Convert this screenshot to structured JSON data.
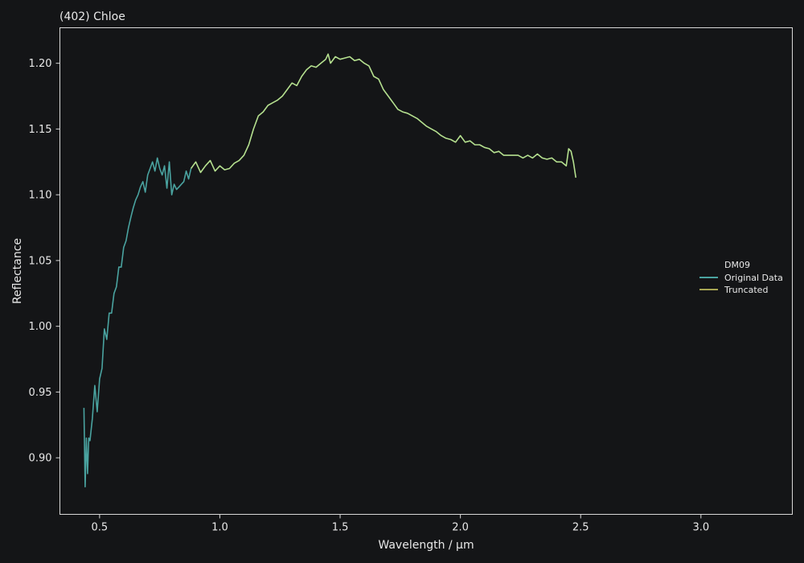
{
  "chart_data": {
    "type": "line",
    "title": "(402) Chloe",
    "xlabel": "Wavelength / µm",
    "ylabel": "Reflectance",
    "xlim": [
      0.335,
      3.38
    ],
    "ylim": [
      0.857,
      1.227
    ],
    "xticks": [
      0.5,
      1.0,
      1.5,
      2.0,
      2.5,
      3.0
    ],
    "xtick_labels": [
      "0.5",
      "1.0",
      "1.5",
      "2.0",
      "2.5",
      "3.0"
    ],
    "yticks": [
      0.9,
      0.95,
      1.0,
      1.05,
      1.1,
      1.15,
      1.2
    ],
    "ytick_labels": [
      "0.90",
      "0.95",
      "1.00",
      "1.05",
      "1.10",
      "1.15",
      "1.20"
    ],
    "grid": false,
    "legend": {
      "title": "DM09",
      "position": "right"
    },
    "series": [
      {
        "name": "Original Data",
        "color": "#4aa3a0",
        "x": [
          0.435,
          0.44,
          0.445,
          0.45,
          0.455,
          0.46,
          0.47,
          0.48,
          0.49,
          0.5,
          0.51,
          0.52,
          0.53,
          0.54,
          0.55,
          0.56,
          0.57,
          0.58,
          0.59,
          0.6,
          0.61,
          0.62,
          0.63,
          0.64,
          0.65,
          0.66,
          0.67,
          0.68,
          0.69,
          0.7,
          0.71,
          0.72,
          0.73,
          0.74,
          0.75,
          0.76,
          0.77,
          0.78,
          0.79,
          0.8,
          0.81,
          0.82,
          0.83,
          0.84,
          0.85,
          0.86,
          0.87,
          0.88
        ],
        "y": [
          0.938,
          0.878,
          0.915,
          0.888,
          0.915,
          0.913,
          0.93,
          0.955,
          0.935,
          0.96,
          0.968,
          0.998,
          0.99,
          1.01,
          1.01,
          1.025,
          1.03,
          1.045,
          1.045,
          1.06,
          1.065,
          1.075,
          1.083,
          1.09,
          1.096,
          1.1,
          1.106,
          1.11,
          1.102,
          1.115,
          1.12,
          1.125,
          1.118,
          1.128,
          1.12,
          1.115,
          1.122,
          1.105,
          1.125,
          1.1,
          1.108,
          1.104,
          1.106,
          1.108,
          1.11,
          1.118,
          1.112,
          1.12
        ]
      },
      {
        "name": "Truncated",
        "color": "#b5e08f",
        "x": [
          0.88,
          0.9,
          0.92,
          0.94,
          0.96,
          0.98,
          1.0,
          1.02,
          1.04,
          1.06,
          1.08,
          1.1,
          1.12,
          1.14,
          1.16,
          1.18,
          1.2,
          1.22,
          1.24,
          1.26,
          1.28,
          1.3,
          1.32,
          1.34,
          1.36,
          1.38,
          1.4,
          1.42,
          1.44,
          1.45,
          1.46,
          1.48,
          1.5,
          1.52,
          1.54,
          1.56,
          1.58,
          1.6,
          1.62,
          1.64,
          1.66,
          1.68,
          1.7,
          1.72,
          1.74,
          1.76,
          1.78,
          1.8,
          1.82,
          1.84,
          1.86,
          1.88,
          1.9,
          1.92,
          1.94,
          1.96,
          1.98,
          2.0,
          2.02,
          2.04,
          2.06,
          2.08,
          2.1,
          2.12,
          2.14,
          2.16,
          2.18,
          2.2,
          2.22,
          2.24,
          2.26,
          2.28,
          2.3,
          2.32,
          2.34,
          2.36,
          2.38,
          2.4,
          2.42,
          2.44,
          2.45,
          2.46,
          2.47,
          2.48
        ],
        "y": [
          1.12,
          1.125,
          1.117,
          1.122,
          1.126,
          1.118,
          1.122,
          1.119,
          1.12,
          1.124,
          1.126,
          1.13,
          1.138,
          1.15,
          1.16,
          1.163,
          1.168,
          1.17,
          1.172,
          1.175,
          1.18,
          1.185,
          1.183,
          1.19,
          1.195,
          1.198,
          1.197,
          1.2,
          1.203,
          1.207,
          1.2,
          1.205,
          1.203,
          1.204,
          1.205,
          1.202,
          1.203,
          1.2,
          1.198,
          1.19,
          1.188,
          1.18,
          1.175,
          1.17,
          1.165,
          1.163,
          1.162,
          1.16,
          1.158,
          1.155,
          1.152,
          1.15,
          1.148,
          1.145,
          1.143,
          1.142,
          1.14,
          1.145,
          1.14,
          1.141,
          1.138,
          1.138,
          1.136,
          1.135,
          1.132,
          1.133,
          1.13,
          1.13,
          1.13,
          1.13,
          1.128,
          1.13,
          1.128,
          1.131,
          1.128,
          1.127,
          1.128,
          1.125,
          1.125,
          1.122,
          1.135,
          1.133,
          1.125,
          1.113
        ]
      }
    ]
  }
}
